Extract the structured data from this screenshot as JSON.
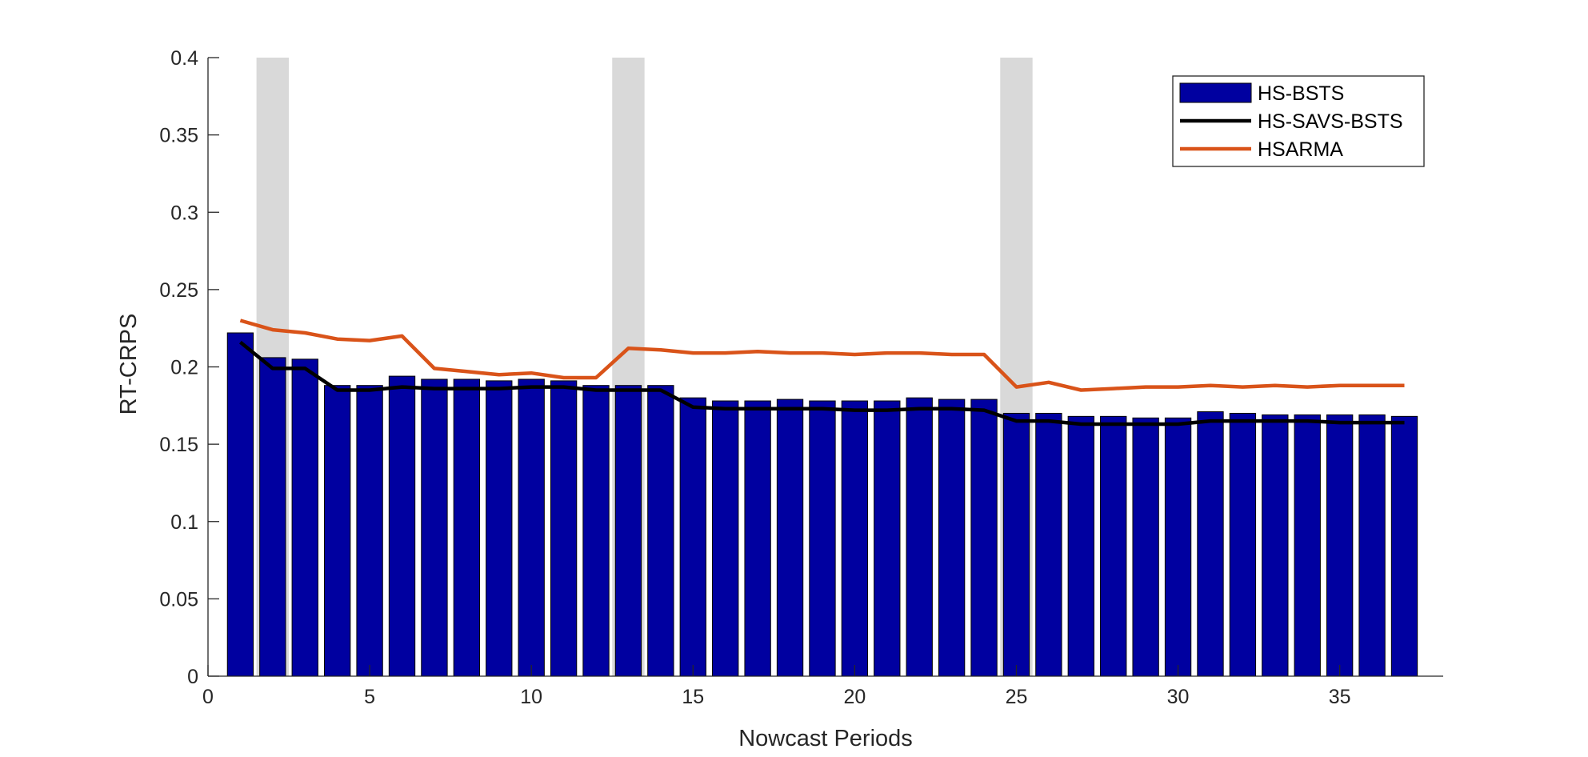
{
  "chart_data": {
    "type": "bar",
    "title": "",
    "xlabel": "Nowcast Periods",
    "ylabel": "RT-CRPS",
    "xlim": [
      0,
      38.2
    ],
    "ylim": [
      0,
      0.4
    ],
    "xticks": [
      0,
      5,
      10,
      15,
      20,
      25,
      30,
      35
    ],
    "xtick_labels": [
      "0",
      "5",
      "10",
      "15",
      "20",
      "25",
      "30",
      "35"
    ],
    "yticks": [
      0,
      0.05,
      0.1,
      0.15,
      0.2,
      0.25,
      0.3,
      0.35,
      0.4
    ],
    "ytick_labels": [
      "0",
      "0.05",
      "0.1",
      "0.15",
      "0.2",
      "0.25",
      "0.3",
      "0.35",
      "0.4"
    ],
    "legend_position": "top-right",
    "shaded_periods": [
      2,
      13,
      25
    ],
    "colors": {
      "bars": "#0000A0",
      "bar_edge": "#000000",
      "savs": "#000000",
      "hsarma": "#D95319",
      "shade": "#D9D9D9",
      "axis": "#262626"
    },
    "x": [
      1,
      2,
      3,
      4,
      5,
      6,
      7,
      8,
      9,
      10,
      11,
      12,
      13,
      14,
      15,
      16,
      17,
      18,
      19,
      20,
      21,
      22,
      23,
      24,
      25,
      26,
      27,
      28,
      29,
      30,
      31,
      32,
      33,
      34,
      35,
      36,
      37
    ],
    "series": [
      {
        "name": "HS-BSTS",
        "kind": "bar",
        "values": [
          0.222,
          0.206,
          0.205,
          0.188,
          0.188,
          0.194,
          0.192,
          0.192,
          0.191,
          0.192,
          0.191,
          0.188,
          0.188,
          0.188,
          0.18,
          0.178,
          0.178,
          0.179,
          0.178,
          0.178,
          0.178,
          0.18,
          0.179,
          0.179,
          0.17,
          0.17,
          0.168,
          0.168,
          0.167,
          0.167,
          0.171,
          0.17,
          0.169,
          0.169,
          0.169,
          0.169,
          0.168
        ]
      },
      {
        "name": "HS-SAVS-BSTS",
        "kind": "line",
        "values": [
          0.216,
          0.199,
          0.199,
          0.185,
          0.185,
          0.187,
          0.186,
          0.186,
          0.186,
          0.187,
          0.187,
          0.185,
          0.185,
          0.185,
          0.174,
          0.173,
          0.173,
          0.173,
          0.173,
          0.172,
          0.172,
          0.173,
          0.173,
          0.172,
          0.165,
          0.165,
          0.163,
          0.163,
          0.163,
          0.163,
          0.165,
          0.165,
          0.165,
          0.165,
          0.164,
          0.164,
          0.164
        ]
      },
      {
        "name": "HSARMA",
        "kind": "line",
        "values": [
          0.23,
          0.224,
          0.222,
          0.218,
          0.217,
          0.22,
          0.199,
          0.197,
          0.195,
          0.196,
          0.193,
          0.193,
          0.212,
          0.211,
          0.209,
          0.209,
          0.21,
          0.209,
          0.209,
          0.208,
          0.209,
          0.209,
          0.208,
          0.208,
          0.187,
          0.19,
          0.185,
          0.186,
          0.187,
          0.187,
          0.188,
          0.187,
          0.188,
          0.187,
          0.188,
          0.188,
          0.188
        ]
      }
    ]
  }
}
